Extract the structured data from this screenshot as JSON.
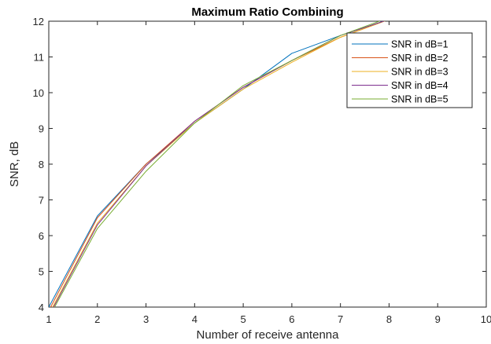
{
  "chart_data": {
    "type": "line",
    "title": "Maximum Ratio Combining",
    "xlabel": "Number of receive antenna",
    "ylabel": "SNR, dB",
    "xlim": [
      1,
      10
    ],
    "ylim": [
      4,
      12
    ],
    "xticks": [
      "1",
      "2",
      "3",
      "4",
      "5",
      "6",
      "7",
      "8",
      "9",
      "10"
    ],
    "yticks": [
      "4",
      "5",
      "6",
      "7",
      "8",
      "9",
      "10",
      "11",
      "12"
    ],
    "grid": false,
    "legend_position": "top-right",
    "x": [
      1,
      2,
      3,
      4,
      5,
      6,
      7,
      8
    ],
    "series": [
      {
        "name": "SNR in dB=1",
        "color": "#0072BD",
        "values": [
          4.0,
          6.55,
          8.0,
          9.15,
          10.1,
          11.1,
          11.6,
          12.05
        ]
      },
      {
        "name": "SNR in dB=2",
        "color": "#D95319",
        "values": [
          3.9,
          6.5,
          8.0,
          9.2,
          10.15,
          10.9,
          11.55,
          12.05
        ]
      },
      {
        "name": "SNR in dB=3",
        "color": "#EDB120",
        "values": [
          3.8,
          6.35,
          7.95,
          9.15,
          10.1,
          10.85,
          11.55,
          12.05
        ]
      },
      {
        "name": "SNR in dB=4",
        "color": "#7E2F8E",
        "values": [
          3.75,
          6.3,
          7.95,
          9.2,
          10.15,
          10.9,
          11.6,
          12.05
        ]
      },
      {
        "name": "SNR in dB=5",
        "color": "#77AC30",
        "values": [
          3.7,
          6.2,
          7.8,
          9.15,
          10.2,
          10.9,
          11.6,
          12.1
        ]
      }
    ]
  }
}
